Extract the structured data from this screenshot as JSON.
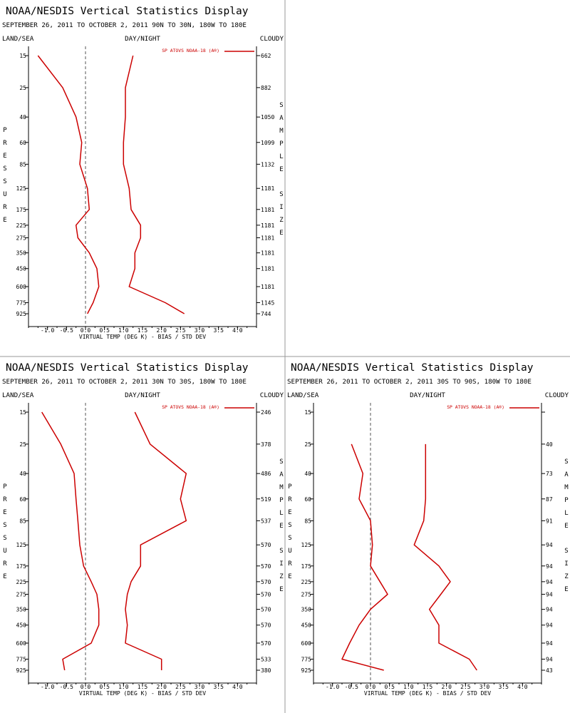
{
  "panels": [
    {
      "title": "NOAA/NESDIS Vertical Statistics Display",
      "subtitle": "SEPTEMBER 26, 2011 TO OCTOBER 2, 2011 90N TO 30N, 180W TO 180E",
      "header_left": "LAND/SEA",
      "header_mid": "DAY/NIGHT",
      "header_right": "CLOUDY",
      "left_vertical_label": "PRESSURE",
      "right_vertical_label_1": "SAMPLE",
      "right_vertical_label_2": "SIZE",
      "legend": "SP ATOVS NOAA-18 (A®)",
      "xlabel": "VIRTUAL TEMP (DEG K) - BIAS / STD DEV",
      "sample_sizes": [
        "662",
        "882",
        "1050",
        "1099",
        "1132",
        "1181",
        "1181",
        "1181",
        "1181",
        "1181",
        "1181",
        "1181",
        "1145",
        "744"
      ]
    },
    {
      "title": "NOAA/NESDIS Vertical Statistics Display",
      "subtitle": "SEPTEMBER 26, 2011 TO OCTOBER 2, 2011 30N TO 30S, 180W TO 180E",
      "header_left": "LAND/SEA",
      "header_mid": "DAY/NIGHT",
      "header_right": "CLOUDY",
      "left_vertical_label": "PRESSURE",
      "right_vertical_label_1": "SAMPLE",
      "right_vertical_label_2": "SIZE",
      "legend": "SP ATOVS NOAA-18 (A®)",
      "xlabel": "VIRTUAL TEMP (DEG K) - BIAS / STD DEV",
      "sample_sizes": [
        "246",
        "378",
        "486",
        "519",
        "537",
        "570",
        "570",
        "570",
        "570",
        "570",
        "570",
        "570",
        "533",
        "380"
      ]
    },
    {
      "title": "NOAA/NESDIS Vertical Statistics Display",
      "subtitle": "SEPTEMBER 26, 2011 TO OCTOBER 2, 2011 30S TO 90S, 180W TO 180E",
      "header_left": "LAND/SEA",
      "header_mid": "DAY/NIGHT",
      "header_right": "CLOUDY",
      "left_vertical_label": "PRESSURE",
      "right_vertical_label_1": "SAMPLE",
      "right_vertical_label_2": "SIZE",
      "legend": "SP ATOVS NOAA-18 (A®)",
      "xlabel": "VIRTUAL TEMP (DEG K) - BIAS / STD DEV",
      "sample_sizes": [
        "",
        "40",
        "73",
        "87",
        "91",
        "94",
        "94",
        "94",
        "94",
        "94",
        "94",
        "94",
        "94",
        "43"
      ]
    }
  ],
  "colors": {
    "series": "#cc0000",
    "axis": "#000000",
    "zero_line": "#555555",
    "divider": "#999999"
  },
  "chart_data": [
    {
      "type": "line",
      "pressure_levels": [
        15,
        25,
        40,
        60,
        85,
        125,
        175,
        225,
        275,
        350,
        450,
        600,
        775,
        925
      ],
      "pressure_tick_labels": [
        "15",
        "25",
        "40",
        "60",
        "85",
        "125",
        "175",
        "225",
        "275",
        "350",
        "450",
        "600",
        "775",
        "925"
      ],
      "x_tick_labels": [
        "-1.0",
        "-0.5",
        "0.0",
        "0.5",
        "1.0",
        "1.5",
        "2.0",
        "2.5",
        "3.0",
        "3.5",
        "4.0"
      ],
      "xlim": [
        -1.5,
        4.5
      ],
      "y_scale": "log",
      "series": [
        {
          "values": [
            -1.25,
            -0.6,
            -0.25,
            -0.1,
            -0.15,
            0.05,
            0.1,
            -0.25,
            -0.2,
            0.1,
            0.3,
            0.35,
            0.2,
            0.05
          ]
        },
        {
          "values": [
            1.25,
            1.05,
            1.05,
            1.0,
            1.0,
            1.15,
            1.2,
            1.45,
            1.45,
            1.3,
            1.3,
            1.15,
            2.1,
            2.6
          ]
        }
      ]
    },
    {
      "type": "line",
      "pressure_levels": [
        15,
        25,
        40,
        60,
        85,
        125,
        175,
        225,
        275,
        350,
        450,
        600,
        775,
        925
      ],
      "pressure_tick_labels": [
        "15",
        "25",
        "40",
        "60",
        "85",
        "125",
        "175",
        "225",
        "275",
        "350",
        "450",
        "600",
        "775",
        "925"
      ],
      "x_tick_labels": [
        "-1.0",
        "-0.5",
        "0.0",
        "0.5",
        "1.0",
        "1.5",
        "2.0",
        "2.5",
        "3.0",
        "3.5",
        "4.0"
      ],
      "xlim": [
        -1.5,
        4.5
      ],
      "y_scale": "log",
      "series": [
        {
          "values": [
            -1.15,
            -0.65,
            -0.3,
            -0.25,
            -0.2,
            -0.15,
            -0.05,
            0.15,
            0.3,
            0.35,
            0.35,
            0.15,
            -0.6,
            -0.55
          ]
        },
        {
          "values": [
            1.3,
            1.7,
            2.65,
            2.5,
            2.65,
            1.45,
            1.45,
            1.2,
            1.1,
            1.05,
            1.1,
            1.05,
            2.0,
            2.0
          ]
        }
      ]
    },
    {
      "type": "line",
      "pressure_levels": [
        25,
        40,
        60,
        85,
        125,
        175,
        225,
        275,
        350,
        450,
        600,
        775,
        925
      ],
      "pressure_tick_labels": [
        "15",
        "25",
        "40",
        "60",
        "85",
        "125",
        "175",
        "225",
        "275",
        "350",
        "450",
        "600",
        "775",
        "925"
      ],
      "x_tick_labels": [
        "-1.0",
        "-0.5",
        "0.0",
        "0.5",
        "1.0",
        "1.5",
        "2.0",
        "2.5",
        "3.0",
        "3.5",
        "4.0"
      ],
      "xlim": [
        -1.5,
        4.5
      ],
      "y_scale": "log",
      "series": [
        {
          "values": [
            -0.5,
            -0.2,
            -0.3,
            0.0,
            0.05,
            0.0,
            0.25,
            0.45,
            0.0,
            -0.3,
            -0.55,
            -0.75,
            0.35
          ]
        },
        {
          "values": [
            1.45,
            1.45,
            1.45,
            1.4,
            1.15,
            1.8,
            2.1,
            1.85,
            1.55,
            1.8,
            1.8,
            2.6,
            2.8
          ]
        }
      ]
    }
  ]
}
